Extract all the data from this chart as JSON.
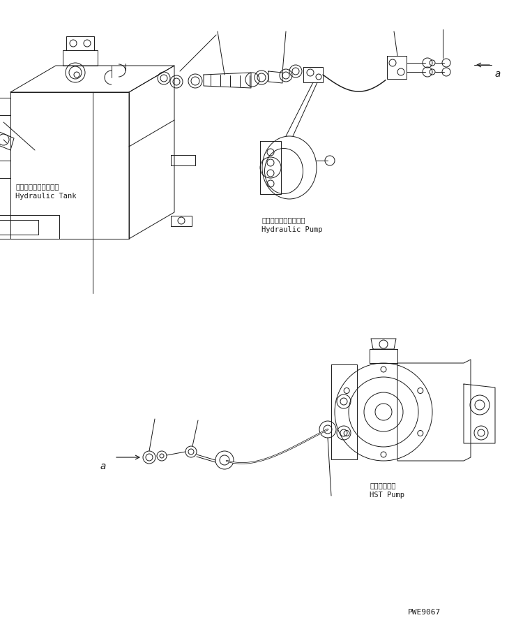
{
  "bg_color": "#ffffff",
  "line_color": "#1a1a1a",
  "lw": 0.7,
  "fig_width": 7.4,
  "fig_height": 8.88,
  "dpi": 100,
  "labels": {
    "hydraulic_tank_jp": "ハイドロリックタンク",
    "hydraulic_tank_en": "Hydraulic Tank",
    "hydraulic_pump_jp": "ハイドロリックポンプ",
    "hydraulic_pump_en": "Hydraulic Pump",
    "hst_pump_jp": "ＨＳＴポンプ",
    "hst_pump_en": "HST Pump",
    "ref_a": "a",
    "part_id": "PWE9067"
  }
}
